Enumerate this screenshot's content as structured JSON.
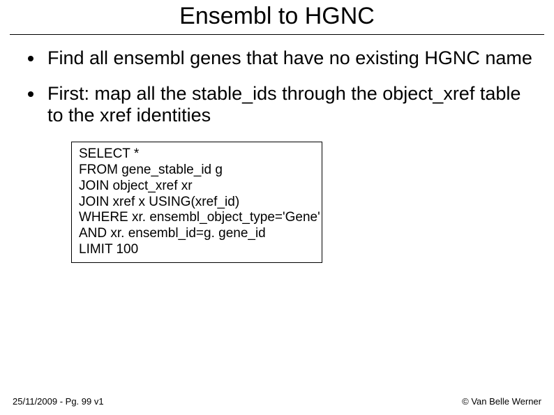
{
  "title": "Ensembl to HGNC",
  "bullets": [
    "Find all ensembl genes that have no existing HGNC name",
    "First: map all the stable_ids through the object_xref table to the xref identities"
  ],
  "code": {
    "lines": [
      "SELECT *",
      "FROM gene_stable_id g",
      "JOIN object_xref xr",
      "JOIN xref x USING(xref_id)",
      "WHERE xr. ensembl_object_type='Gene'",
      "AND xr. ensembl_id=g. gene_id",
      "LIMIT 100"
    ]
  },
  "footer": {
    "left": "25/11/2009 - Pg. 99 v1",
    "right": "© Van Belle Werner"
  },
  "styles": {
    "background_color": "#ffffff",
    "text_color": "#000000",
    "title_fontsize": 34,
    "bullet_fontsize": 27,
    "code_fontsize": 19,
    "footer_fontsize": 13,
    "border_color": "#000000",
    "font_family": "Arial, Helvetica, sans-serif"
  }
}
